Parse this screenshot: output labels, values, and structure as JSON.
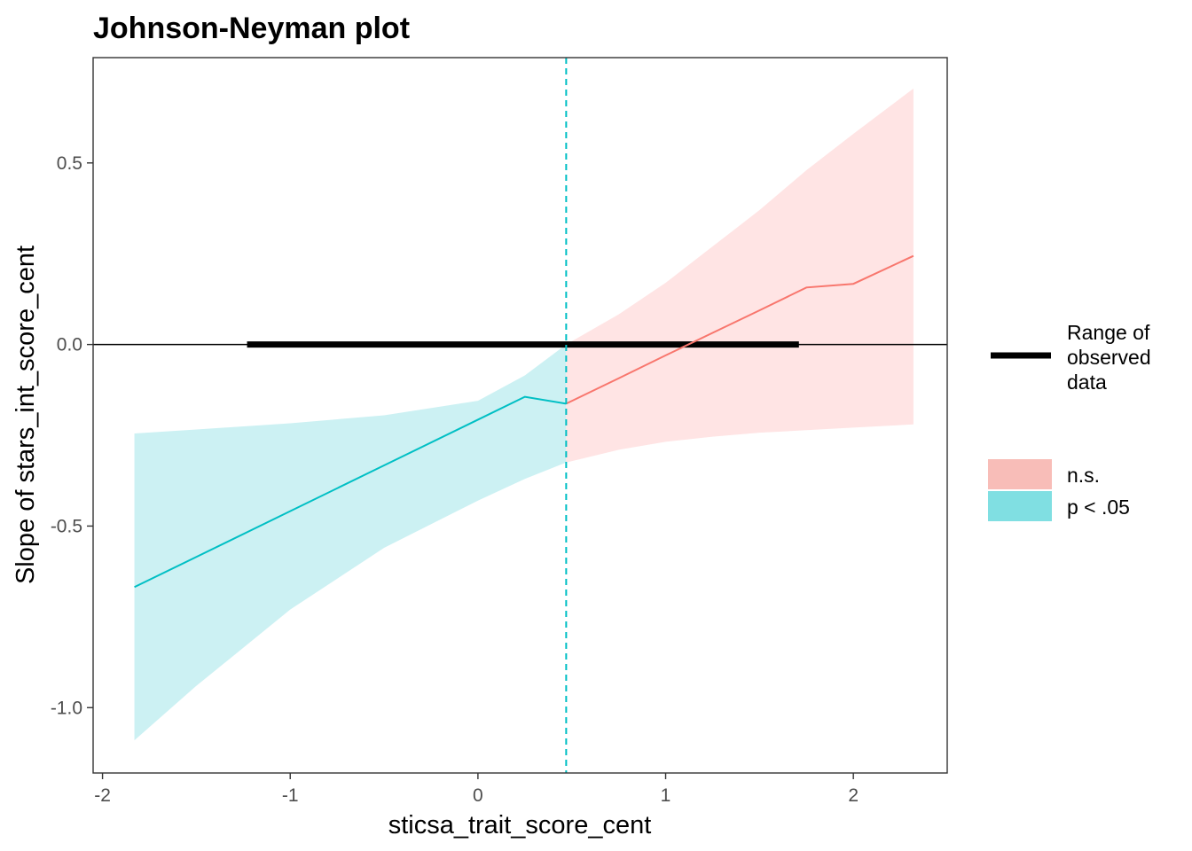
{
  "chart_data": {
    "type": "line",
    "title": "Johnson-Neyman plot",
    "xlabel": "sticsa_trait_score_cent",
    "ylabel": "Slope of stars_int_score_cent",
    "xlim": [
      -2.05,
      2.5
    ],
    "ylim": [
      -1.18,
      0.79
    ],
    "x_ticks": [
      -2,
      -1,
      0,
      1,
      2
    ],
    "x_tick_labels": [
      "-2",
      "-1",
      "0",
      "1",
      "2"
    ],
    "y_ticks": [
      -1.0,
      -0.5,
      0.0,
      0.5
    ],
    "y_tick_labels": [
      "-1.0",
      "-0.5",
      "0.0",
      "0.5"
    ],
    "grid": false,
    "johnson_neyman_point": 0.47,
    "range_of_observed_data": [
      -1.23,
      1.71
    ],
    "series": [
      {
        "name": "p < .05",
        "color": "#00BFC4",
        "band_color": "#CCF1F3",
        "x": [
          -1.83,
          -1.5,
          -1.0,
          -0.5,
          0.0,
          0.25,
          0.47
        ],
        "y": [
          -0.668,
          -0.585,
          -0.459,
          -0.333,
          -0.207,
          -0.144,
          -0.163
        ],
        "lower": [
          -1.09,
          -0.94,
          -0.73,
          -0.56,
          -0.43,
          -0.37,
          -0.325
        ],
        "upper": [
          -0.245,
          -0.234,
          -0.217,
          -0.195,
          -0.155,
          -0.085,
          0.0
        ]
      },
      {
        "name": "n.s.",
        "color": "#F8766D",
        "band_color": "#FFE4E4",
        "x": [
          0.47,
          0.75,
          1.0,
          1.25,
          1.5,
          1.75,
          2.0,
          2.32
        ],
        "y": [
          -0.163,
          -0.093,
          -0.03,
          0.032,
          0.094,
          0.157,
          0.167,
          0.244
        ],
        "lower": [
          -0.325,
          -0.29,
          -0.268,
          -0.254,
          -0.243,
          -0.236,
          -0.229,
          -0.22
        ],
        "upper": [
          0.0,
          0.083,
          0.17,
          0.27,
          0.37,
          0.48,
          0.58,
          0.705
        ]
      }
    ],
    "legend": {
      "position": "right",
      "line_label": "Range of observed data",
      "line_label_lines": [
        "Range of",
        "observed",
        "data"
      ],
      "fill_entries": [
        {
          "label": "n.s.",
          "color": "#F8BDB8"
        },
        {
          "label": "p < .05",
          "color": "#80DFE2"
        }
      ]
    }
  }
}
